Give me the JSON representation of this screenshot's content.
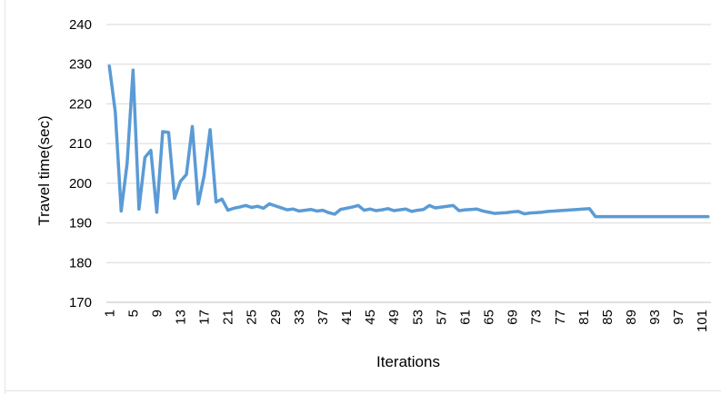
{
  "chart_data": {
    "type": "line",
    "title": "",
    "xlabel": "Iterations",
    "ylabel": "Travel time(sec)",
    "ylim": [
      170,
      240
    ],
    "y_ticks": [
      170,
      180,
      190,
      200,
      210,
      220,
      230,
      240
    ],
    "x_tick_labels": [
      "1",
      "5",
      "9",
      "13",
      "17",
      "21",
      "25",
      "29",
      "33",
      "37",
      "41",
      "45",
      "49",
      "53",
      "57",
      "61",
      "65",
      "69",
      "73",
      "77",
      "81",
      "85",
      "89",
      "93",
      "97",
      "101"
    ],
    "grid": "horizontal",
    "legend": "none",
    "line_color": "#5b9bd5",
    "series": [
      {
        "x": [
          1,
          2,
          3,
          4,
          5,
          6,
          7,
          8,
          9,
          10,
          11,
          12,
          13,
          14,
          15,
          16,
          17,
          18,
          19,
          20,
          21,
          22,
          23,
          24,
          25,
          26,
          27,
          28,
          29,
          30,
          31,
          32,
          33,
          34,
          35,
          36,
          37,
          38,
          39,
          40,
          41,
          42,
          43,
          44,
          45,
          46,
          47,
          48,
          49,
          50,
          51,
          52,
          53,
          54,
          55,
          56,
          57,
          58,
          59,
          60,
          61,
          62,
          63,
          64,
          65,
          66,
          67,
          68,
          69,
          70,
          71,
          72,
          73,
          74,
          75,
          76,
          77,
          78,
          79,
          80,
          81,
          82,
          83,
          84,
          85,
          86,
          87,
          88,
          89,
          90,
          91,
          92,
          93,
          94,
          95,
          96,
          97,
          98,
          99,
          100,
          101,
          102
        ],
        "values": [
          229.5,
          218,
          193,
          205,
          228.5,
          193.5,
          206.5,
          208.3,
          192.7,
          213,
          212.8,
          196.2,
          200.5,
          202.2,
          214.3,
          194.8,
          202,
          213.5,
          195.3,
          196,
          193.2,
          193.7,
          194,
          194.4,
          193.9,
          194.2,
          193.7,
          194.8,
          194.3,
          193.8,
          193.3,
          193.5,
          193,
          193.2,
          193.4,
          193,
          193.2,
          192.6,
          192.2,
          193.4,
          193.7,
          194,
          194.4,
          193.2,
          193.5,
          193.1,
          193.3,
          193.6,
          193.1,
          193.3,
          193.5,
          192.9,
          193.2,
          193.4,
          194.4,
          193.8,
          194,
          194.2,
          194.4,
          193.1,
          193.3,
          193.4,
          193.5,
          193,
          192.7,
          192.4,
          192.5,
          192.6,
          192.8,
          192.9,
          192.3,
          192.5,
          192.6,
          192.7,
          192.9,
          193,
          193.1,
          193.2,
          193.3,
          193.4,
          193.5,
          193.6,
          191.6,
          191.6,
          191.6,
          191.6,
          191.6,
          191.6,
          191.6,
          191.6,
          191.6,
          191.6,
          191.6,
          191.6,
          191.6,
          191.6,
          191.6,
          191.6,
          191.6,
          191.6,
          191.6,
          191.6
        ]
      }
    ]
  }
}
